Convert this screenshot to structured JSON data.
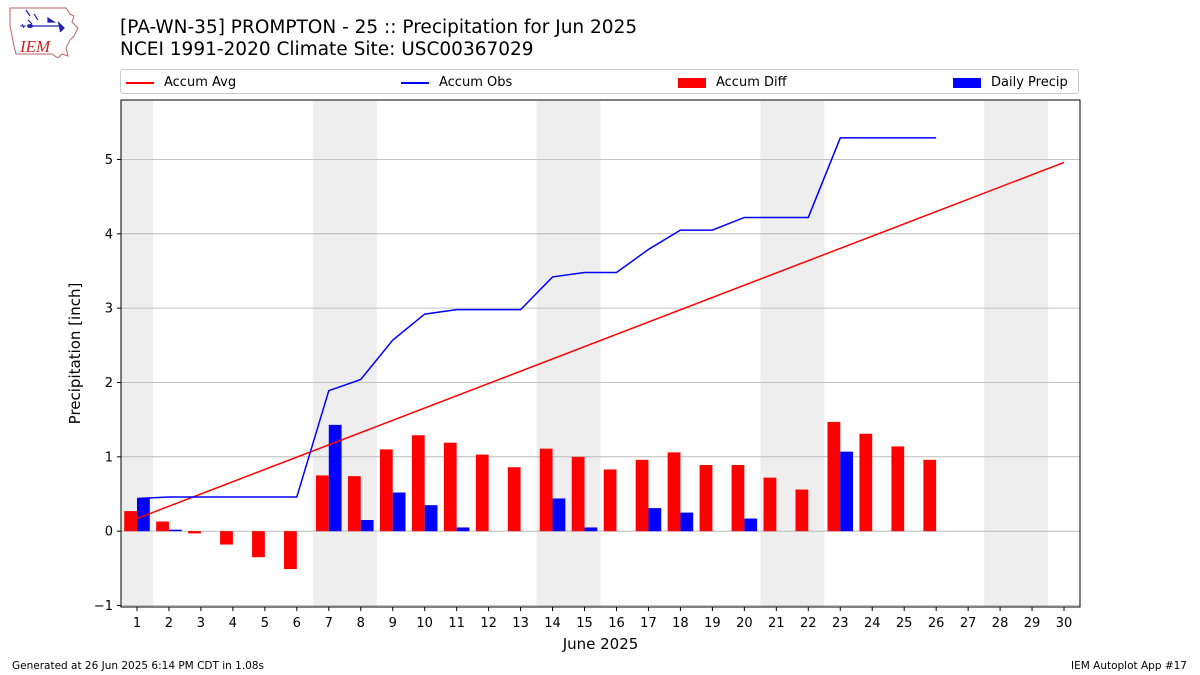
{
  "header": {
    "title_line1": "[PA-WN-35] PROMPTON - 25 :: Precipitation for Jun 2025",
    "title_line2": "NCEI 1991-2020 Climate Site: USC00367029"
  },
  "logo": {
    "text": "IEM",
    "icon": "iem-iowa-logo-icon"
  },
  "footer": {
    "generated": "Generated at 26 Jun 2025 6:14 PM CDT in 1.08s",
    "app": "IEM Autoplot App #17"
  },
  "colors": {
    "avg": "#ff0000",
    "obs": "#0000ff",
    "diff": "#ff0000",
    "daily": "#0000ff",
    "weekend": "#eeeeee",
    "grid": "#b0b0b0"
  },
  "chart_data": {
    "type": "bar",
    "xlabel": "June 2025",
    "ylabel": "Precipitation [inch]",
    "xlim": [
      0.5,
      30.5
    ],
    "ylim": [
      -1.02,
      5.8
    ],
    "yticks": [
      -1,
      0,
      1,
      2,
      3,
      4,
      5
    ],
    "x": [
      1,
      2,
      3,
      4,
      5,
      6,
      7,
      8,
      9,
      10,
      11,
      12,
      13,
      14,
      15,
      16,
      17,
      18,
      19,
      20,
      21,
      22,
      23,
      24,
      25,
      26,
      27,
      28,
      29,
      30
    ],
    "legend": {
      "position": "top",
      "entries": [
        "Accum Avg",
        "Accum Obs",
        "Accum Diff",
        "Daily Precip"
      ]
    },
    "weekend_spans": [
      [
        0.5,
        1.5
      ],
      [
        6.5,
        8.5
      ],
      [
        13.5,
        15.5
      ],
      [
        20.5,
        22.5
      ],
      [
        27.5,
        29.5
      ]
    ],
    "series": [
      {
        "name": "Accum Avg",
        "kind": "line",
        "color": "#ff0000",
        "x": [
          1,
          30
        ],
        "values": [
          0.17,
          4.96
        ]
      },
      {
        "name": "Accum Obs",
        "kind": "line",
        "color": "#0000ff",
        "x": [
          1,
          2,
          3,
          4,
          5,
          6,
          7,
          8,
          9,
          10,
          11,
          12,
          13,
          14,
          15,
          16,
          17,
          18,
          19,
          20,
          21,
          22,
          23,
          24,
          25,
          26
        ],
        "values": [
          0.44,
          0.46,
          0.46,
          0.46,
          0.46,
          0.46,
          1.89,
          2.04,
          2.57,
          2.92,
          2.98,
          2.98,
          2.98,
          3.42,
          3.48,
          3.48,
          3.79,
          4.05,
          4.05,
          4.22,
          4.22,
          4.22,
          5.29,
          5.29,
          5.29,
          5.29
        ]
      },
      {
        "name": "Accum Diff",
        "kind": "bar",
        "color": "#ff0000",
        "x": [
          1,
          2,
          3,
          4,
          5,
          6,
          7,
          8,
          9,
          10,
          11,
          12,
          13,
          14,
          15,
          16,
          17,
          18,
          19,
          20,
          21,
          22,
          23,
          24,
          25,
          26
        ],
        "values": [
          0.27,
          0.13,
          -0.03,
          -0.18,
          -0.35,
          -0.51,
          0.75,
          0.74,
          1.1,
          1.29,
          1.19,
          1.03,
          0.86,
          1.11,
          1.0,
          0.83,
          0.96,
          1.06,
          0.89,
          0.89,
          0.72,
          0.56,
          1.47,
          1.31,
          1.14,
          0.96
        ]
      },
      {
        "name": "Daily Precip",
        "kind": "bar",
        "color": "#0000ff",
        "x": [
          1,
          2,
          3,
          4,
          5,
          6,
          7,
          8,
          9,
          10,
          11,
          12,
          13,
          14,
          15,
          16,
          17,
          18,
          19,
          20,
          21,
          22,
          23,
          24,
          25,
          26
        ],
        "values": [
          0.44,
          0.02,
          0,
          0,
          0,
          0,
          1.43,
          0.15,
          0.52,
          0.35,
          0.05,
          0,
          0,
          0.44,
          0.05,
          0,
          0.31,
          0.25,
          0,
          0.17,
          0,
          0,
          1.07,
          0,
          0,
          0
        ]
      }
    ]
  }
}
